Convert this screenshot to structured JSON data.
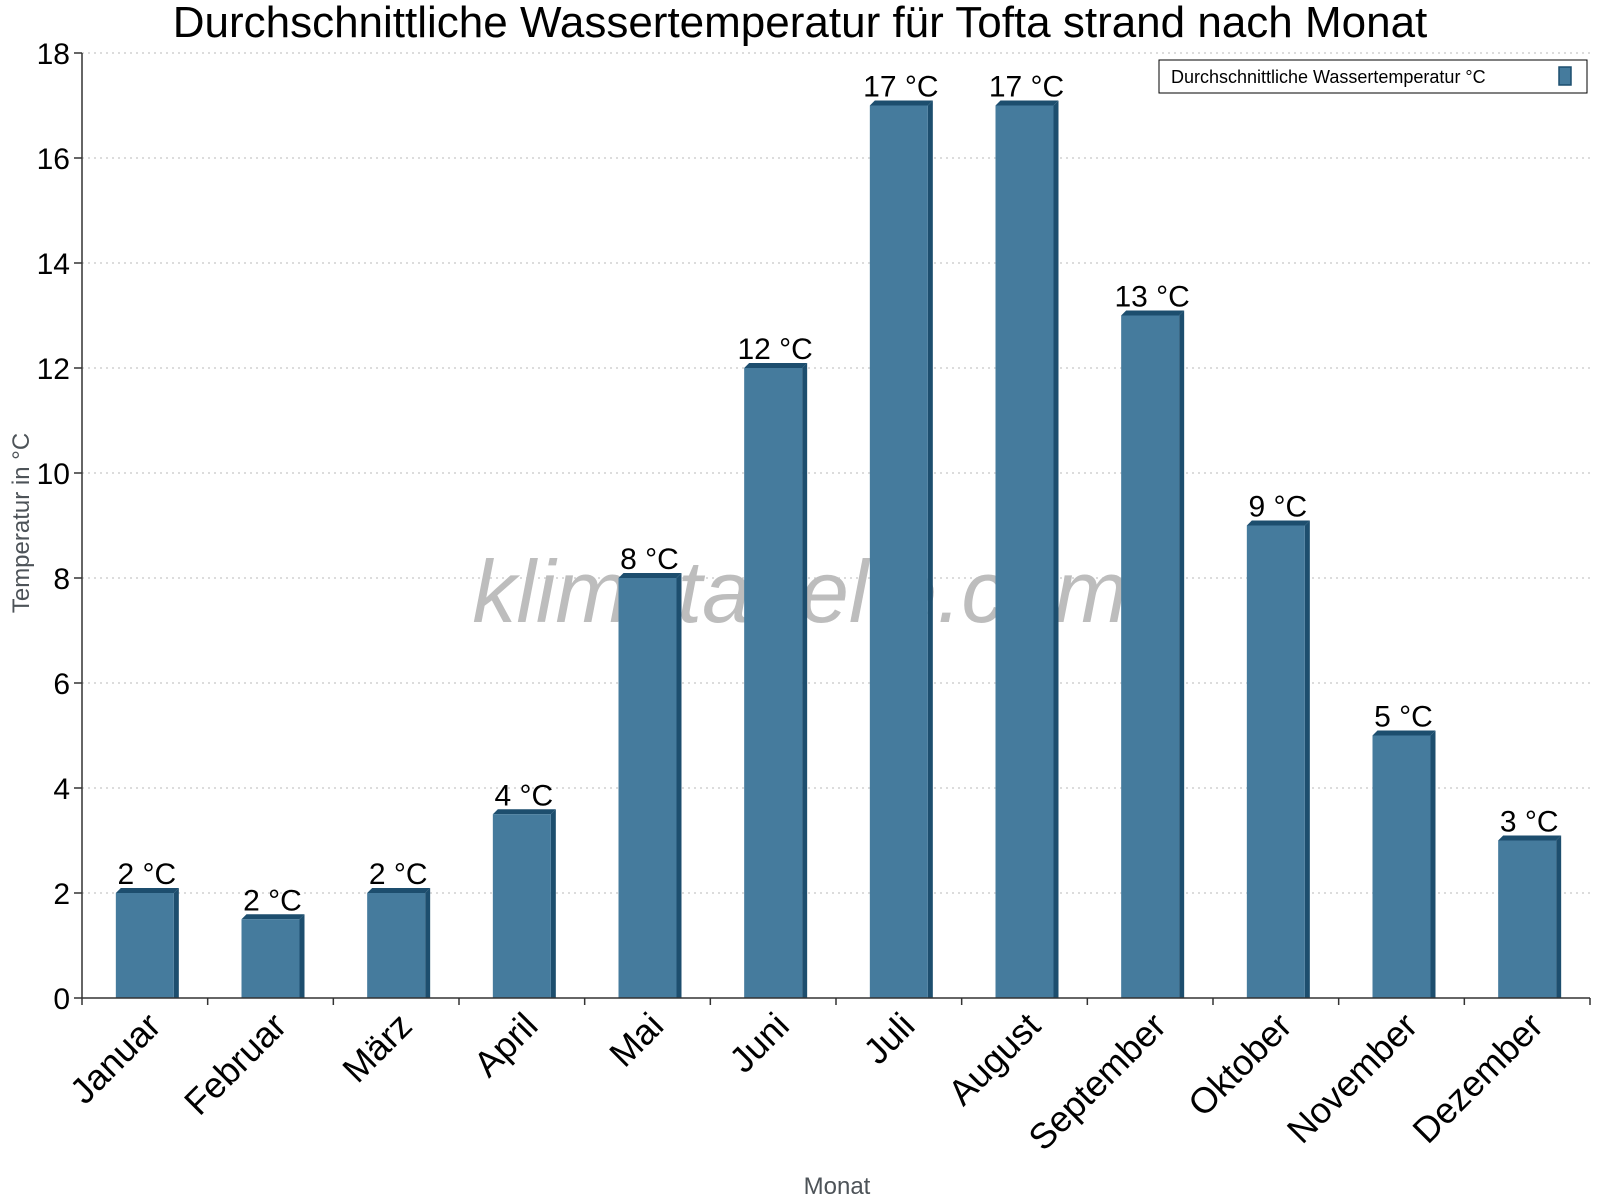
{
  "chart_data": {
    "type": "bar",
    "title": "Durchschnittliche Wassertemperatur für Tofta strand nach Monat",
    "xlabel": "Monat",
    "ylabel": "Temperatur in °C",
    "ylim": [
      0,
      18
    ],
    "yticks": [
      0,
      2,
      4,
      6,
      8,
      10,
      12,
      14,
      16,
      18
    ],
    "grid": true,
    "legend_position": "top-right",
    "categories": [
      "Januar",
      "Februar",
      "März",
      "April",
      "Mai",
      "Juni",
      "Juli",
      "August",
      "September",
      "Oktober",
      "November",
      "Dezember"
    ],
    "series": [
      {
        "name": "Durchschnittliche Wassertemperatur °C",
        "values": [
          2,
          1.5,
          2,
          3.5,
          8,
          12,
          17,
          17,
          13,
          9,
          5,
          3
        ],
        "labels": [
          "2 °C",
          "2 °C",
          "2 °C",
          "4 °C",
          "8 °C",
          "12 °C",
          "17 °C",
          "17 °C",
          "13 °C",
          "9 °C",
          "5 °C",
          "3 °C"
        ],
        "color": "#457b9d",
        "shade_color": "#1d4e6e"
      }
    ],
    "watermark": "klimatabelle.com"
  }
}
